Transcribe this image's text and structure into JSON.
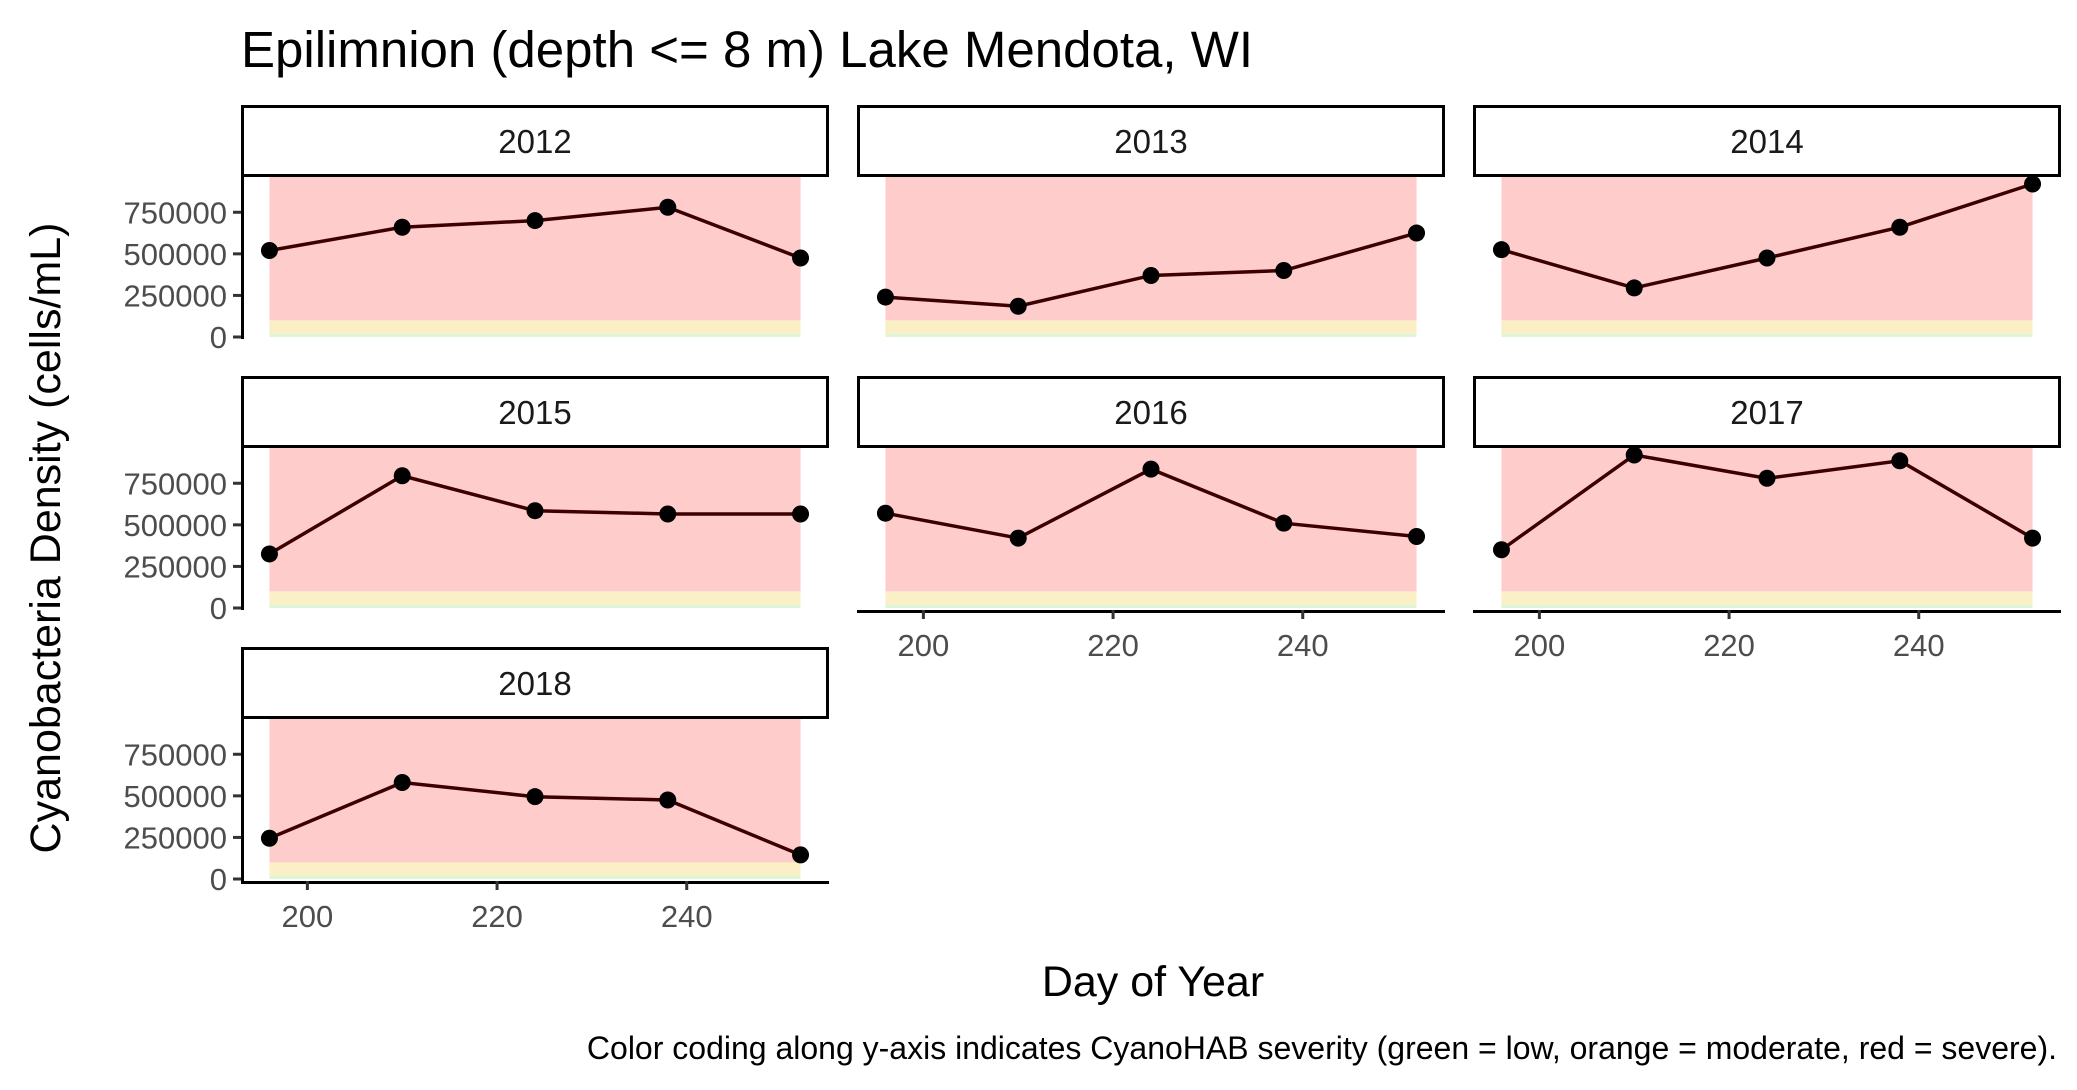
{
  "chart_data": {
    "type": "line",
    "title": "Epilimnion (depth <= 8 m) Lake Mendota, WI",
    "xlabel": "Day of Year",
    "ylabel": "Cyanobacteria Density (cells/mL)",
    "caption": "Color coding along y-axis indicates CyanoHAB severity (green = low, orange = moderate, red = severe).",
    "xlim": [
      193,
      255
    ],
    "ylim": [
      0,
      950000
    ],
    "x_ticks": [
      200,
      220,
      240
    ],
    "y_ticks": [
      0,
      250000,
      500000,
      750000
    ],
    "severity_bands": [
      {
        "label": "low",
        "from": 0,
        "to": 20000,
        "color": "#dff5d8"
      },
      {
        "label": "moderate",
        "from": 20000,
        "to": 100000,
        "color": "#fbefc6"
      },
      {
        "label": "severe",
        "from": 100000,
        "to": 950000,
        "color": "#ffcccc"
      }
    ],
    "series_color": "#3d0000",
    "point_color": "#000000",
    "x": [
      196,
      210,
      224,
      238,
      252
    ],
    "panels": [
      {
        "year": "2012",
        "values": [
          520000,
          660000,
          700000,
          780000,
          475000
        ]
      },
      {
        "year": "2013",
        "values": [
          240000,
          185000,
          370000,
          400000,
          625000
        ]
      },
      {
        "year": "2014",
        "values": [
          525000,
          295000,
          475000,
          660000,
          920000
        ]
      },
      {
        "year": "2015",
        "values": [
          325000,
          795000,
          585000,
          565000,
          565000
        ]
      },
      {
        "year": "2016",
        "values": [
          570000,
          420000,
          835000,
          510000,
          430000
        ]
      },
      {
        "year": "2017",
        "values": [
          350000,
          920000,
          780000,
          885000,
          420000
        ]
      },
      {
        "year": "2018",
        "values": [
          245000,
          580000,
          495000,
          475000,
          145000
        ]
      }
    ]
  }
}
